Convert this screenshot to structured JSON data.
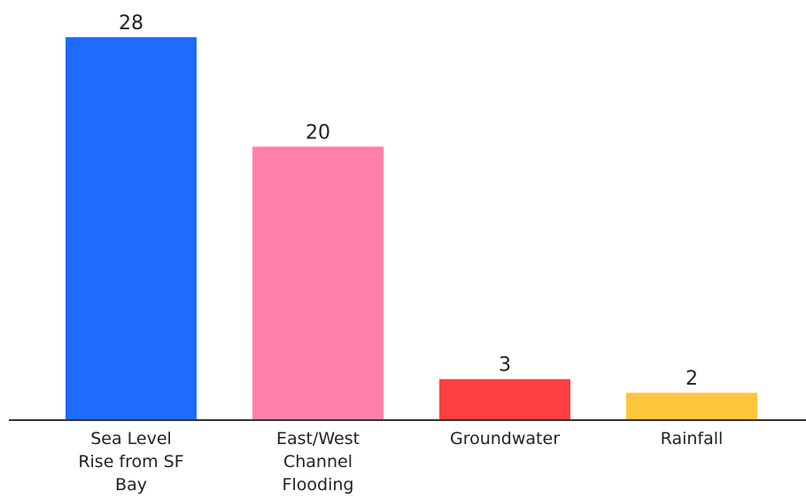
{
  "chart_data": {
    "type": "bar",
    "title": "",
    "xlabel": "",
    "ylabel": "",
    "categories": [
      [
        "Sea Level",
        "Rise from SF",
        "Bay"
      ],
      [
        "East/West",
        "Channel",
        "Flooding"
      ],
      [
        "Groundwater"
      ],
      [
        "Rainfall"
      ]
    ],
    "values": [
      28,
      20,
      3,
      2
    ],
    "colors": [
      "#1f6bff",
      "#ff80ab",
      "#ff4040",
      "#ffc53d"
    ],
    "ylim": [
      0,
      28
    ],
    "grid": false,
    "legend": "none",
    "axis_color": "#333333"
  }
}
